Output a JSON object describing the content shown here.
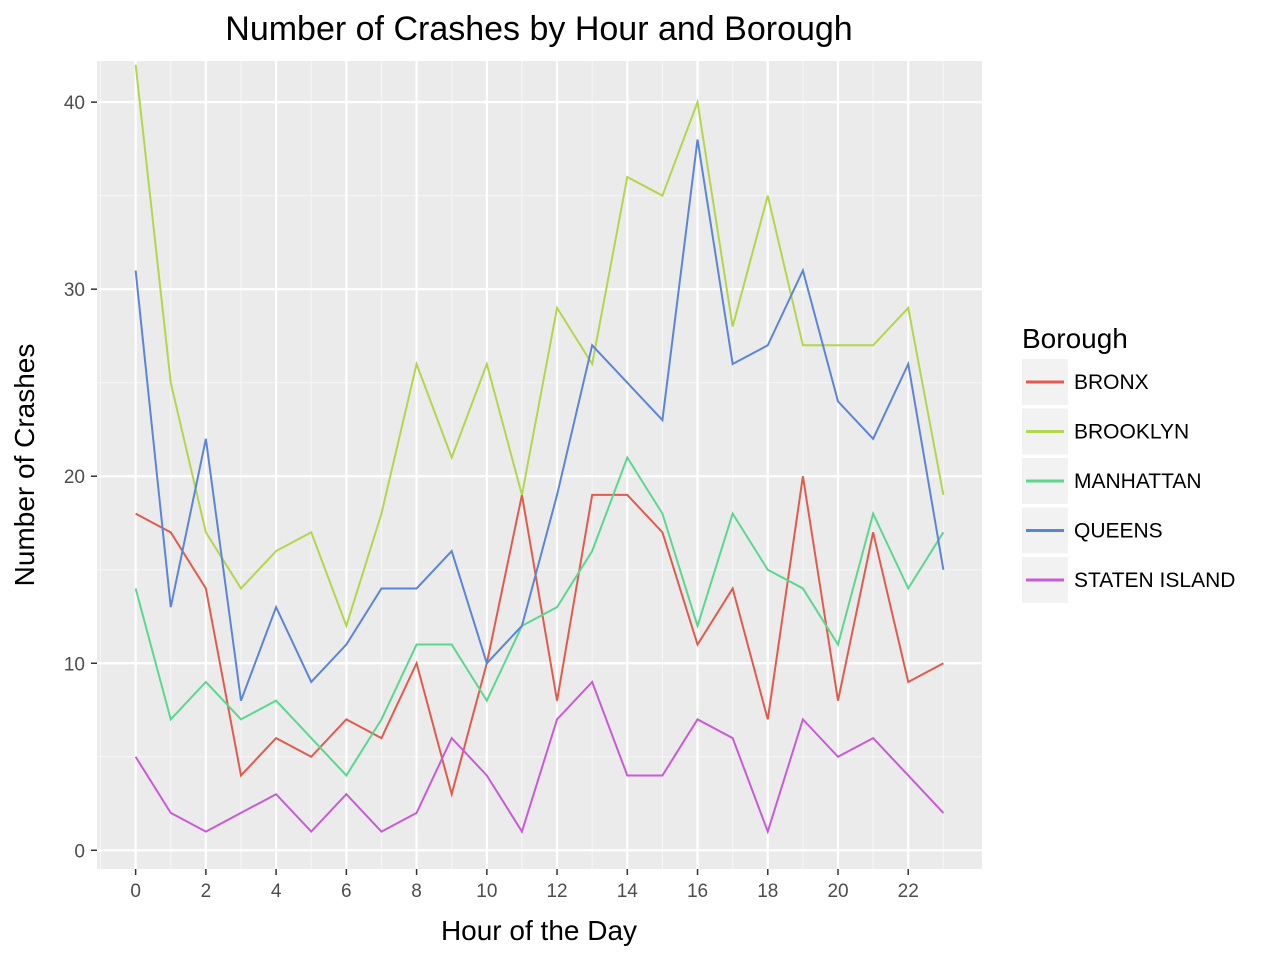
{
  "chart_data": {
    "type": "line",
    "title": "Number of Crashes by Hour and Borough",
    "xlabel": "Hour of the Day",
    "ylabel": "Number of Crashes",
    "xlim": [
      -1.1,
      24.1
    ],
    "ylim": [
      -1,
      42.2
    ],
    "x_ticks": [
      0,
      2,
      4,
      6,
      8,
      10,
      12,
      14,
      16,
      18,
      20,
      22
    ],
    "y_ticks": [
      0,
      10,
      20,
      30,
      40
    ],
    "grid": true,
    "legend_title": "Borough",
    "legend_position": "right",
    "x": [
      0,
      1,
      2,
      3,
      4,
      5,
      6,
      7,
      8,
      9,
      10,
      11,
      12,
      13,
      14,
      15,
      16,
      17,
      18,
      19,
      20,
      21,
      22,
      23
    ],
    "series": [
      {
        "name": "BRONX",
        "color": "#e15b4c",
        "values": [
          18,
          17,
          14,
          4,
          6,
          5,
          7,
          6,
          10,
          3,
          10,
          19,
          8,
          19,
          19,
          17,
          11,
          14,
          7,
          20,
          8,
          17,
          9,
          10
        ]
      },
      {
        "name": "BROOKLYN",
        "color": "#b2d64c",
        "values": [
          42,
          25,
          17,
          14,
          16,
          17,
          12,
          18,
          26,
          21,
          26,
          19,
          29,
          26,
          36,
          35,
          40,
          28,
          35,
          27,
          27,
          27,
          29,
          19
        ]
      },
      {
        "name": "MANHATTAN",
        "color": "#5bd88d",
        "values": [
          14,
          7,
          9,
          7,
          8,
          6,
          4,
          7,
          11,
          11,
          8,
          12,
          13,
          16,
          21,
          18,
          12,
          18,
          15,
          14,
          11,
          18,
          14,
          17
        ]
      },
      {
        "name": "QUEENS",
        "color": "#5a85d8",
        "values": [
          31,
          13,
          22,
          8,
          13,
          9,
          11,
          14,
          14,
          16,
          10,
          12,
          19,
          27,
          25,
          23,
          38,
          26,
          27,
          31,
          24,
          22,
          26,
          15
        ]
      },
      {
        "name": "STATEN ISLAND",
        "color": "#c95ad8",
        "values": [
          5,
          2,
          1,
          2,
          3,
          1,
          3,
          1,
          2,
          6,
          4,
          1,
          7,
          9,
          4,
          4,
          7,
          6,
          1,
          7,
          5,
          6,
          4,
          2
        ]
      }
    ]
  }
}
